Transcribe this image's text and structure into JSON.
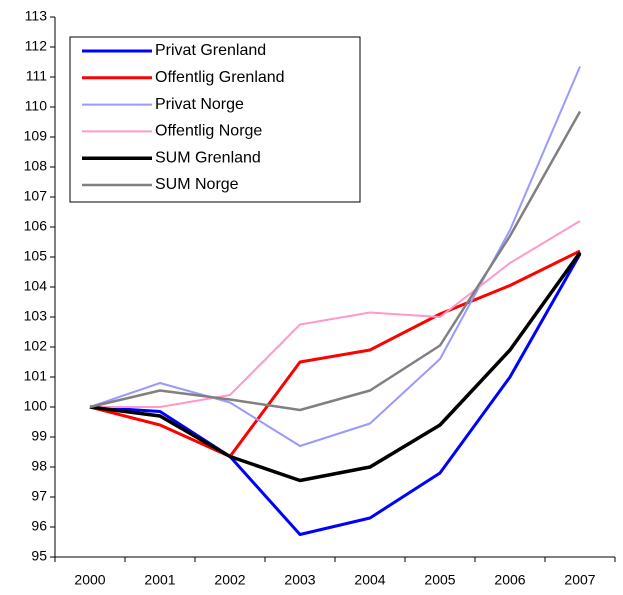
{
  "chart_data": {
    "type": "line",
    "categories": [
      "2000",
      "2001",
      "2002",
      "2003",
      "2004",
      "2005",
      "2006",
      "2007"
    ],
    "series": [
      {
        "name": "Privat Grenland",
        "color": "#0000ff",
        "values": [
          100,
          99.85,
          98.35,
          95.75,
          96.3,
          97.8,
          101,
          105.1
        ]
      },
      {
        "name": "Offentlig Grenland",
        "color": "#ff0000",
        "values": [
          100,
          99.4,
          98.35,
          101.5,
          101.9,
          103.1,
          104.05,
          105.2
        ]
      },
      {
        "name": "Privat Norge",
        "color": "#9999ff",
        "values": [
          100,
          100.8,
          100.15,
          98.7,
          99.45,
          101.6,
          105.9,
          111.35
        ]
      },
      {
        "name": "Offentlig Norge",
        "color": "#ff99cc",
        "values": [
          100,
          100,
          100.4,
          102.75,
          103.15,
          103,
          104.8,
          106.2
        ]
      },
      {
        "name": "SUM Grenland",
        "color": "#000000",
        "values": [
          100,
          99.7,
          98.35,
          97.55,
          98,
          99.4,
          101.9,
          105.15
        ]
      },
      {
        "name": "SUM Norge",
        "color": "#808080",
        "values": [
          100,
          100.55,
          100.25,
          99.9,
          100.55,
          102.05,
          105.7,
          109.85
        ]
      }
    ],
    "ylim": [
      95,
      113
    ],
    "yticks": [
      95,
      96,
      97,
      98,
      99,
      100,
      101,
      102,
      103,
      104,
      105,
      106,
      107,
      108,
      109,
      110,
      111,
      112,
      113
    ],
    "grid": false,
    "legend": "upper-left"
  }
}
